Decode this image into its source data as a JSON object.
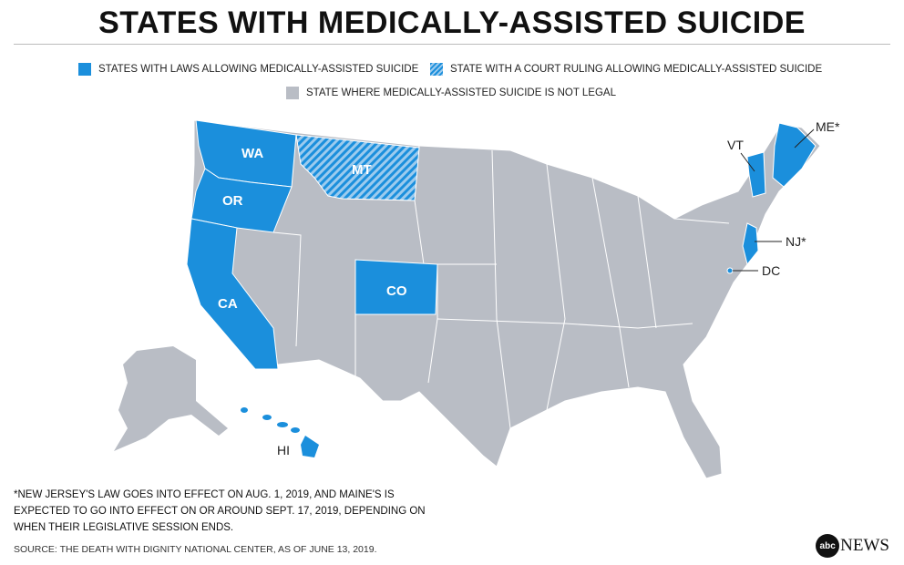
{
  "title": "STATES WITH MEDICALLY-ASSISTED SUICIDE",
  "legend": [
    {
      "label": "STATES WITH LAWS ALLOWING MEDICALLY-ASSISTED SUICIDE",
      "style": "solid",
      "color": "#1b8fdc"
    },
    {
      "label": "STATE WITH A COURT RULING ALLOWING MEDICALLY-ASSISTED SUICIDE",
      "style": "hatched",
      "color": "#1b8fdc"
    },
    {
      "label": "STATE WHERE MEDICALLY-ASSISTED SUICIDE IS NOT LEGAL",
      "style": "solid",
      "color": "#b9bdc5"
    }
  ],
  "states": {
    "WA": "WA",
    "OR": "OR",
    "CA": "CA",
    "MT": "MT",
    "CO": "CO",
    "VT": "VT",
    "ME": "ME*",
    "NJ": "NJ*",
    "DC": "DC",
    "HI": "HI"
  },
  "footnote": [
    "*NEW JERSEY'S LAW GOES INTO EFFECT ON AUG. 1, 2019, AND MAINE'S IS",
    "EXPECTED TO GO INTO EFFECT ON OR AROUND SEPT. 17, 2019, DEPENDING ON",
    "WHEN THEIR LEGISLATIVE SESSION ENDS."
  ],
  "source": "SOURCE: THE DEATH WITH DIGNITY NATIONAL CENTER, AS OF JUNE 13, 2019.",
  "logo": {
    "mark": "abc",
    "text": "NEWS"
  }
}
